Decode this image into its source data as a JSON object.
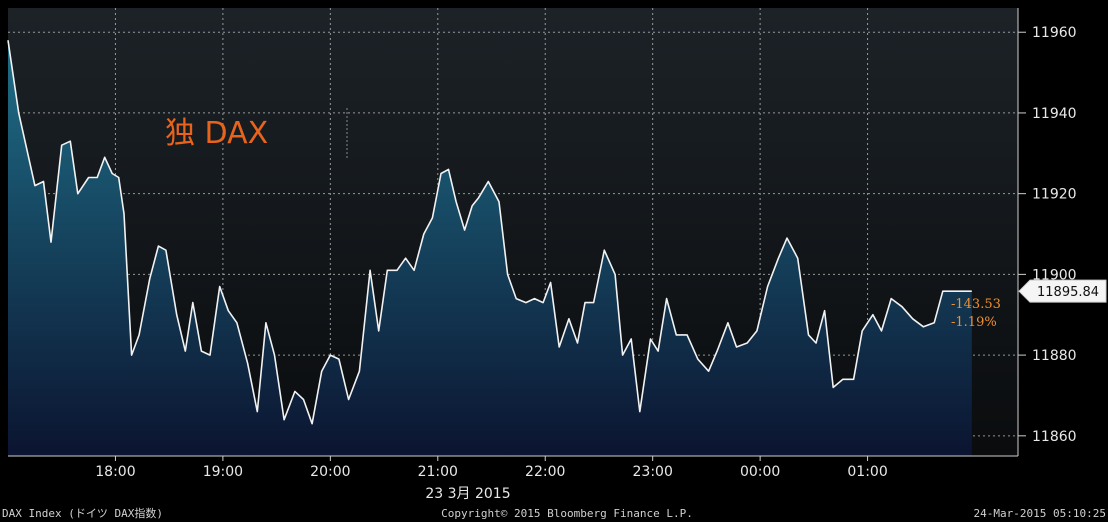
{
  "chart_data": {
    "type": "area",
    "annotation": "独 DAX",
    "x_ticks": [
      "18:00",
      "19:00",
      "20:00",
      "21:00",
      "22:00",
      "23:00",
      "00:00",
      "01:00"
    ],
    "x_ticks_hours": [
      18,
      19,
      20,
      21,
      22,
      23,
      24,
      25
    ],
    "date_label": "23 3月 2015",
    "y_ticks": [
      11860,
      11880,
      11900,
      11920,
      11940,
      11960
    ],
    "ylim": [
      11855,
      11966
    ],
    "xlim_hours": [
      17.0,
      26.4
    ],
    "grid": true,
    "last_value": "11895.84",
    "last_value_num": 11895.84,
    "net_change": "-143.53",
    "pct_change": "-1.19%",
    "series": [
      {
        "x": [
          17.0,
          17.1,
          17.25,
          17.33,
          17.4,
          17.5,
          17.58,
          17.65,
          17.75,
          17.83,
          17.9,
          17.97,
          18.03,
          18.08,
          18.15,
          18.22,
          18.32,
          18.4,
          18.47,
          18.57,
          18.65,
          18.72,
          18.8,
          18.88,
          18.97,
          19.05,
          19.13,
          19.23,
          19.32,
          19.4,
          19.48,
          19.57,
          19.67,
          19.75,
          19.83,
          19.92,
          20.0,
          20.08,
          20.17,
          20.27,
          20.37,
          20.45,
          20.53,
          20.62,
          20.7,
          20.78,
          20.87,
          20.95,
          21.03,
          21.1,
          21.17,
          21.25,
          21.32,
          21.38,
          21.47,
          21.57,
          21.65,
          21.73,
          21.82,
          21.9,
          21.98,
          22.05,
          22.13,
          22.22,
          22.3,
          22.37,
          22.45,
          22.55,
          22.65,
          22.72,
          22.8,
          22.88,
          22.98,
          23.05,
          23.13,
          23.22,
          23.32,
          23.42,
          23.52,
          23.6,
          23.7,
          23.78,
          23.88,
          23.97,
          24.07,
          24.17,
          24.25,
          24.35,
          24.45,
          24.52,
          24.6,
          24.68,
          24.77,
          24.87,
          24.95,
          25.05,
          25.13,
          25.22,
          25.32,
          25.42,
          25.52,
          25.62,
          25.7,
          25.78,
          25.85,
          25.97
        ],
        "values": [
          11958,
          11940,
          11922,
          11923,
          11908,
          11932,
          11933,
          11920,
          11924,
          11924,
          11929,
          11925,
          11924,
          11915,
          11880,
          11885,
          11899,
          11907,
          11906,
          11890,
          11881,
          11893,
          11881,
          11880,
          11897,
          11891,
          11888,
          11878,
          11866,
          11888,
          11880,
          11864,
          11871,
          11869,
          11863,
          11876,
          11880,
          11879,
          11869,
          11876,
          11901,
          11886,
          11901,
          11901,
          11904,
          11901,
          11910,
          11914,
          11925,
          11926,
          11918,
          11911,
          11917,
          11919,
          11923,
          11918,
          11900,
          11894,
          11893,
          11894,
          11893,
          11898,
          11882,
          11889,
          11883,
          11893,
          11893,
          11906,
          11900,
          11880,
          11884,
          11866,
          11884,
          11881,
          11894,
          11885,
          11885,
          11879,
          11876,
          11881,
          11888,
          11882,
          11883,
          11886,
          11897,
          11904,
          11909,
          11904,
          11885,
          11883,
          11891,
          11872,
          11874,
          11874,
          11886,
          11890,
          11886,
          11894,
          11892,
          11889,
          11887,
          11888,
          11895.84,
          11895.84,
          11895.84,
          11895.84
        ]
      }
    ]
  },
  "footer": {
    "left": "DAX Index (ドイツ DAX指数)",
    "center": "Copyright© 2015 Bloomberg Finance L.P.",
    "right": "24-Mar-2015 05:10:25"
  },
  "colors": {
    "area_top": "#1f6f88",
    "area_bottom": "#0b1430",
    "line": "#f2f2f2",
    "grid": "#b8b8b8",
    "annotation": "#e8641c",
    "change": "#f09030"
  }
}
